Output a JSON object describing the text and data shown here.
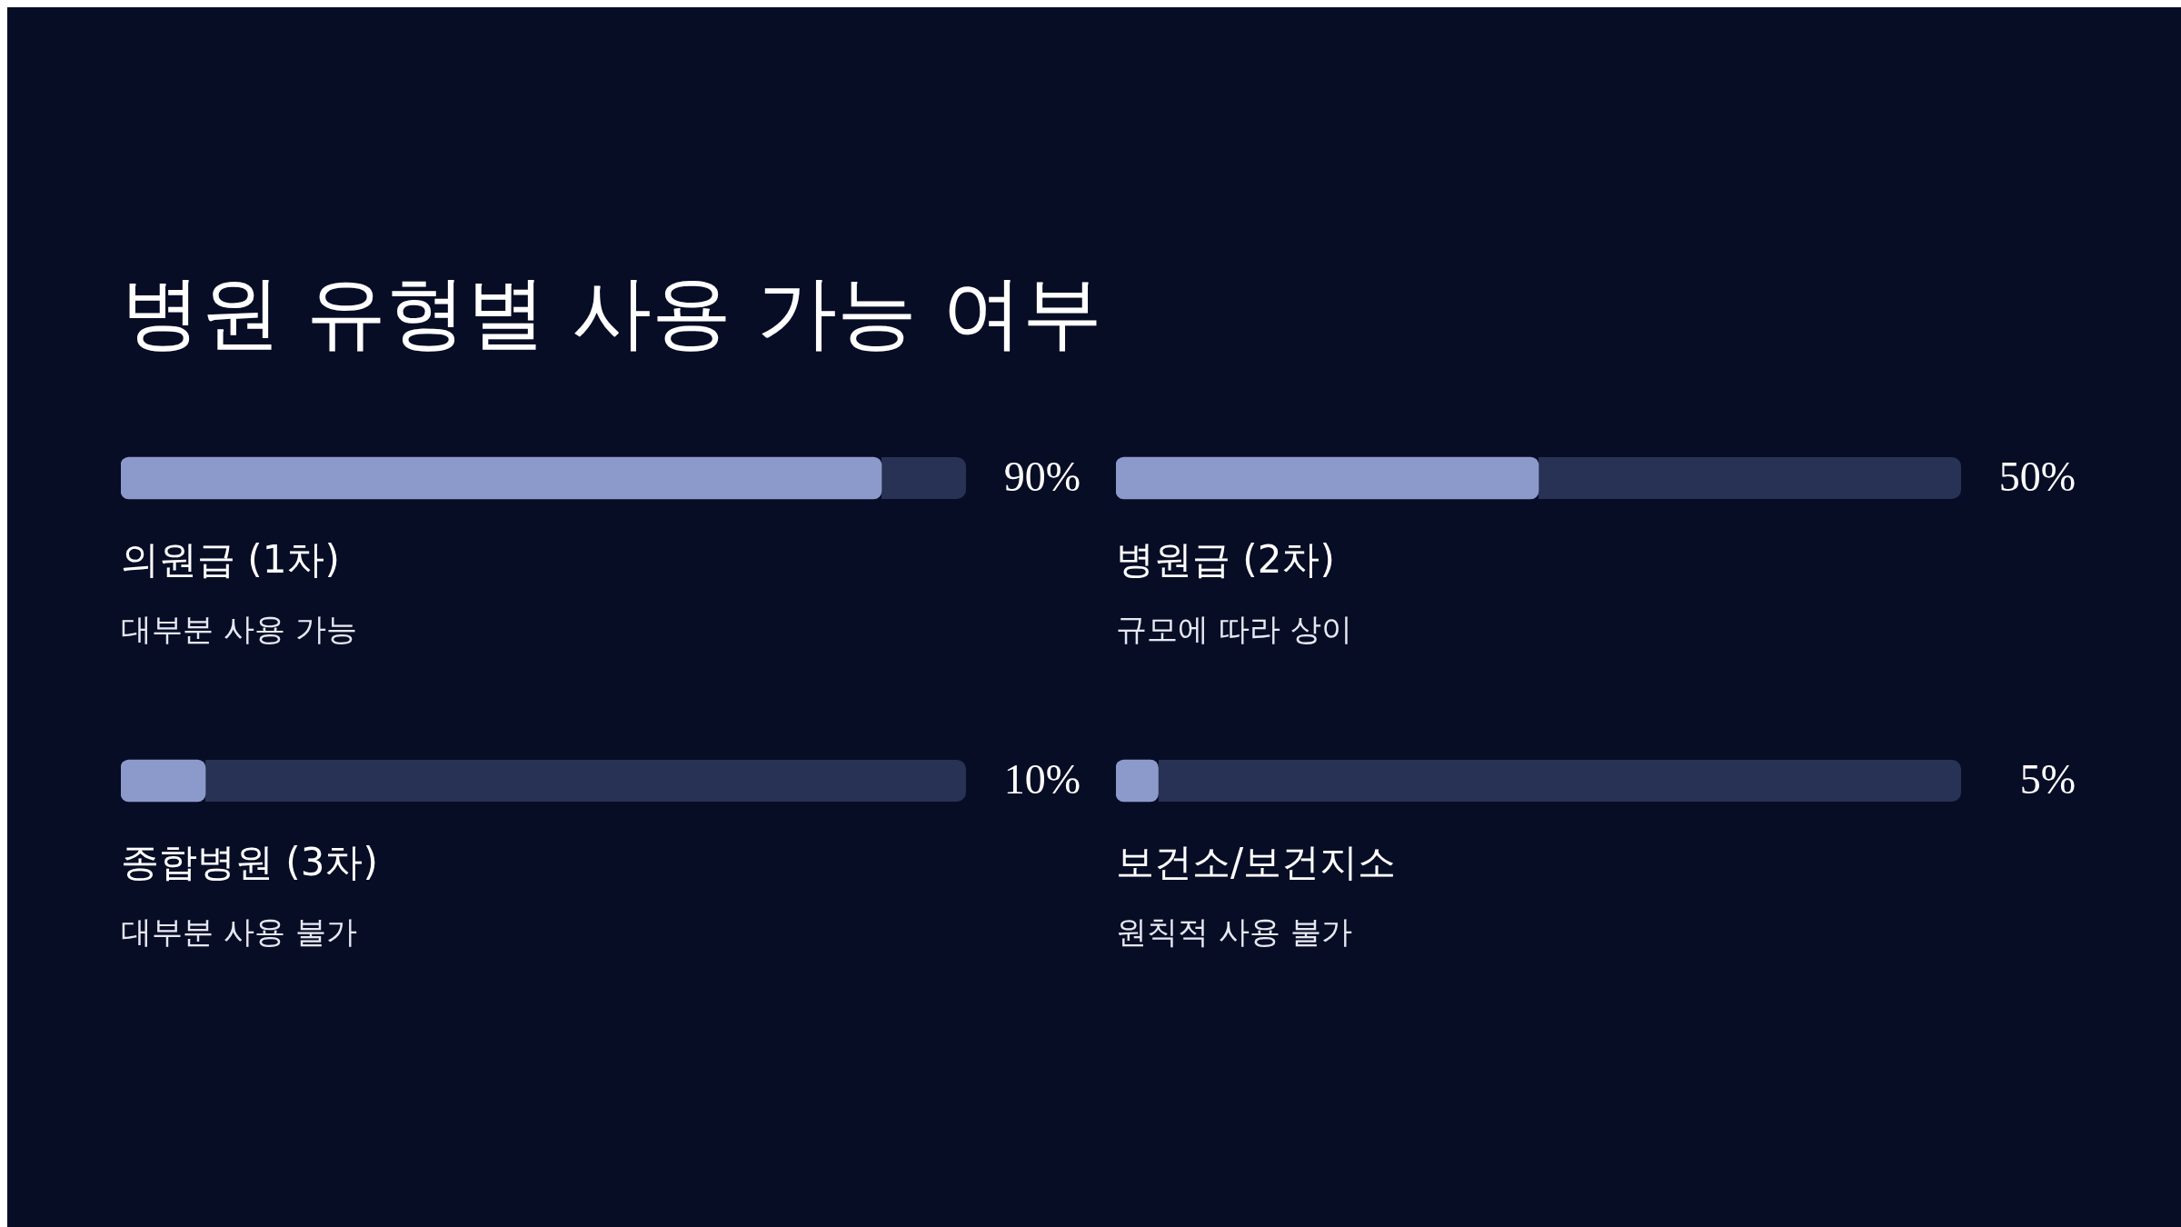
{
  "chart_data": [
    {
      "type": "bar",
      "orientation": "horizontal",
      "title": "병원 유형별 사용 가능 여부",
      "categories": [
        null,
        null
      ],
      "values": [
        90,
        10
      ],
      "value_labels": [
        "90%",
        "10%"
      ],
      "annotations": [
        "의원급 (1차)",
        "대부분 사용 가능",
        "종합병원 (3차)",
        "대부분 사용 불가"
      ],
      "color": "#8c9acb",
      "xlim": [
        0,
        100
      ]
    },
    {
      "type": "bar",
      "orientation": "horizontal",
      "categories": [
        null,
        null
      ],
      "values": [
        50,
        5
      ],
      "value_labels": [
        "50%",
        "5%"
      ],
      "annotations": [
        "병원급 (2차)",
        "규모에 따라 상이",
        "보건소/보건지소",
        "원칙적 사용 불가"
      ],
      "color": "#8c9acb",
      "xlim": [
        0,
        100
      ]
    }
  ]
}
